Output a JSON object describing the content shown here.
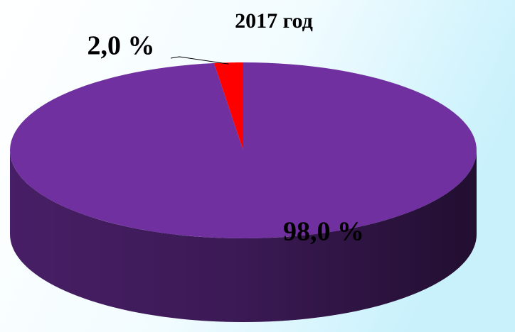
{
  "chart_data": {
    "type": "pie",
    "title": "2017  год",
    "values": [
      98.0,
      2.0
    ],
    "value_labels": [
      "98,0 %",
      "2,0 %"
    ],
    "colors": [
      "#7030a0",
      "#ff0000"
    ]
  }
}
